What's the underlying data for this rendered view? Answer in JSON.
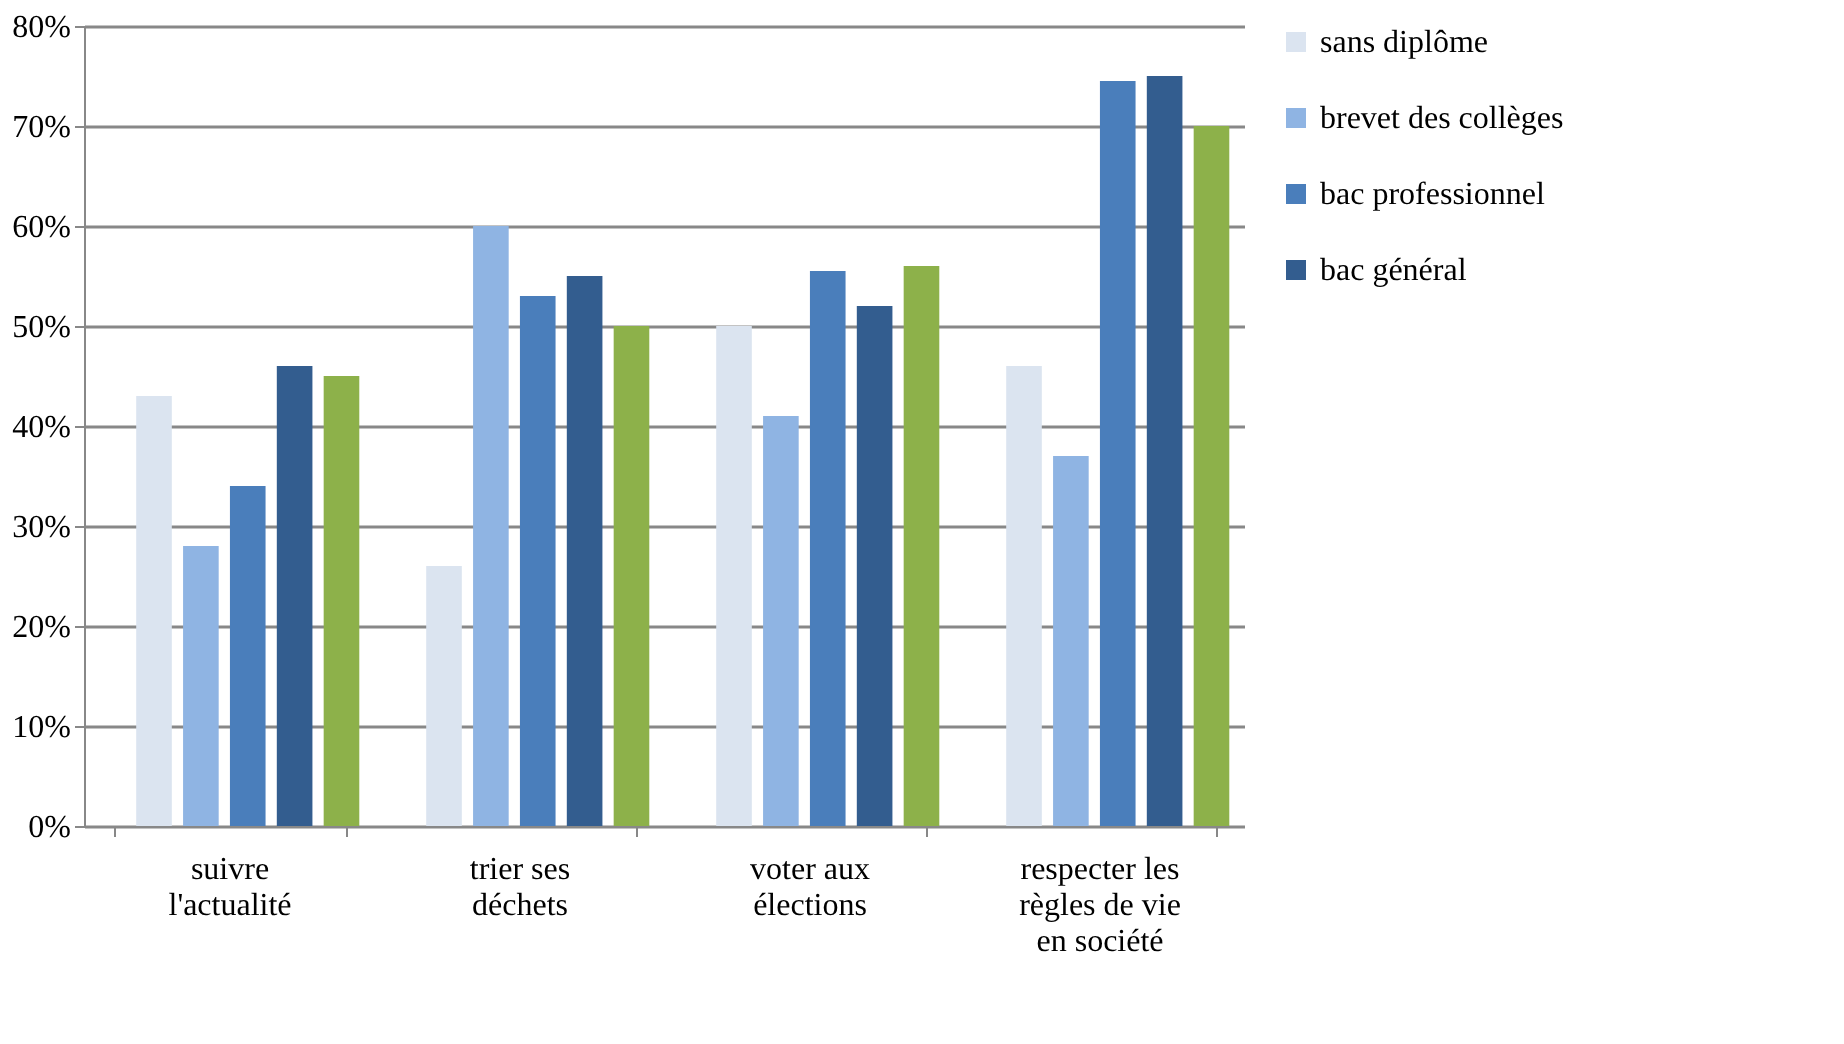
{
  "chart_data": {
    "type": "bar",
    "categories": [
      "suivre\nl'actualité",
      "trier ses\ndéchets",
      "voter aux\nélections",
      "respecter les\nrègles de vie\nen société"
    ],
    "series": [
      {
        "name": "sans diplôme",
        "color": "#dbe4f0",
        "values": [
          43,
          26,
          50,
          46
        ]
      },
      {
        "name": "brevet des collèges",
        "color": "#8fb4e3",
        "values": [
          28,
          60,
          41,
          37
        ]
      },
      {
        "name": "bac professionnel",
        "color": "#4a7ebb",
        "values": [
          34,
          53,
          55.5,
          74.5
        ]
      },
      {
        "name": "bac général",
        "color": "#335d8f",
        "values": [
          46,
          55,
          52,
          75
        ]
      },
      {
        "color": "#8db14a",
        "values": [
          45,
          50,
          56,
          70
        ]
      }
    ],
    "ylim": [
      0,
      80
    ],
    "yticks": [
      {
        "value": 0,
        "label": "0%"
      },
      {
        "value": 10,
        "label": "10%"
      },
      {
        "value": 20,
        "label": "20%"
      },
      {
        "value": 30,
        "label": "30%"
      },
      {
        "value": 40,
        "label": "40%"
      },
      {
        "value": 50,
        "label": "50%"
      },
      {
        "value": 60,
        "label": "60%"
      },
      {
        "value": 70,
        "label": "70%"
      },
      {
        "value": 80,
        "label": "80%"
      }
    ],
    "grid": "y",
    "legend": "right"
  }
}
